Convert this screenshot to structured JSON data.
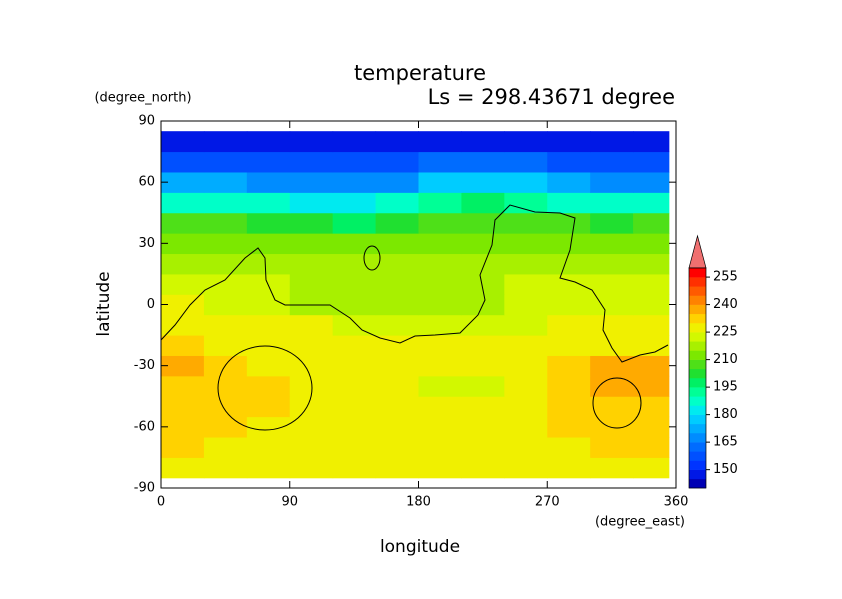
{
  "chart_data": {
    "type": "contour",
    "title": "temperature",
    "subtitle": "Ls = 298.43671 degree",
    "xlabel": "longitude",
    "ylabel": "latitude",
    "x_unit": "(degree_east)",
    "y_unit": "(degree_north)",
    "xlim": [
      0,
      360
    ],
    "ylim": [
      -90,
      90
    ],
    "xticks": [
      0,
      90,
      180,
      270,
      360
    ],
    "yticks": [
      90,
      60,
      30,
      0,
      -30,
      -60,
      -90
    ],
    "x_edges": [
      0,
      30,
      60,
      90,
      120,
      150,
      180,
      210,
      240,
      270,
      300,
      330,
      355
    ],
    "y_edges": [
      -85,
      -75,
      -65,
      -55,
      -45,
      -35,
      -25,
      -15,
      -5,
      5,
      15,
      25,
      35,
      45,
      55,
      65,
      75,
      85
    ],
    "z": [
      [
        227,
        227,
        227,
        227,
        227,
        227,
        227,
        227,
        227,
        227,
        227,
        227
      ],
      [
        232,
        228,
        227,
        227,
        227,
        227,
        227,
        227,
        227,
        228,
        232,
        232
      ],
      [
        233,
        233,
        228,
        227,
        227,
        227,
        227,
        227,
        227,
        233,
        233,
        234
      ],
      [
        233,
        233,
        230,
        227,
        227,
        227,
        227,
        227,
        228,
        234,
        234,
        234
      ],
      [
        234,
        234,
        230,
        228,
        227,
        227,
        222,
        223,
        228,
        233,
        236,
        236
      ],
      [
        236,
        233,
        228,
        228,
        228,
        228,
        228,
        228,
        228,
        233,
        237,
        237
      ],
      [
        232,
        228,
        228,
        228,
        228,
        228,
        228,
        228,
        228,
        228,
        228,
        228
      ],
      [
        226,
        226,
        226,
        225,
        224,
        222,
        222,
        223,
        224,
        226,
        226,
        226
      ],
      [
        225,
        222,
        222,
        219,
        219,
        219,
        219,
        219,
        222,
        224,
        224,
        224
      ],
      [
        220,
        220,
        220,
        218,
        218,
        218,
        218,
        218,
        220,
        222,
        222,
        222
      ],
      [
        217,
        218,
        217,
        216,
        216,
        216,
        216,
        217,
        217,
        217,
        217,
        217
      ],
      [
        213,
        213,
        213,
        212,
        212,
        213,
        213,
        213,
        214,
        214,
        213,
        213
      ],
      [
        205,
        205,
        203,
        200,
        198,
        200,
        205,
        207,
        207,
        205,
        203,
        205
      ],
      [
        188,
        188,
        186,
        184,
        183,
        186,
        192,
        195,
        193,
        188,
        186,
        188
      ],
      [
        170,
        170,
        168,
        166,
        166,
        168,
        175,
        178,
        176,
        172,
        168,
        168
      ],
      [
        158,
        158,
        157,
        156,
        156,
        157,
        160,
        162,
        161,
        158,
        156,
        157
      ],
      [
        148,
        148,
        148,
        148,
        148,
        148,
        148,
        148,
        148,
        148,
        148,
        148
      ]
    ],
    "levels_start": 140,
    "levels_step": 5,
    "colors": [
      "#0000b4",
      "#0018e6",
      "#0034ff",
      "#0050ff",
      "#006cff",
      "#008cff",
      "#00acff",
      "#00ccff",
      "#00eaf0",
      "#00ffc8",
      "#00ff96",
      "#00f064",
      "#20e030",
      "#4ee018",
      "#7ce800",
      "#a8f000",
      "#d2f800",
      "#f0f000",
      "#ffd200",
      "#ffaa00",
      "#ff8200",
      "#ff5a00",
      "#ff3000",
      "#ff0000"
    ],
    "over_color": "#f07070",
    "colorbar_ticks": [
      150,
      165,
      180,
      195,
      210,
      225,
      240,
      255
    ]
  }
}
